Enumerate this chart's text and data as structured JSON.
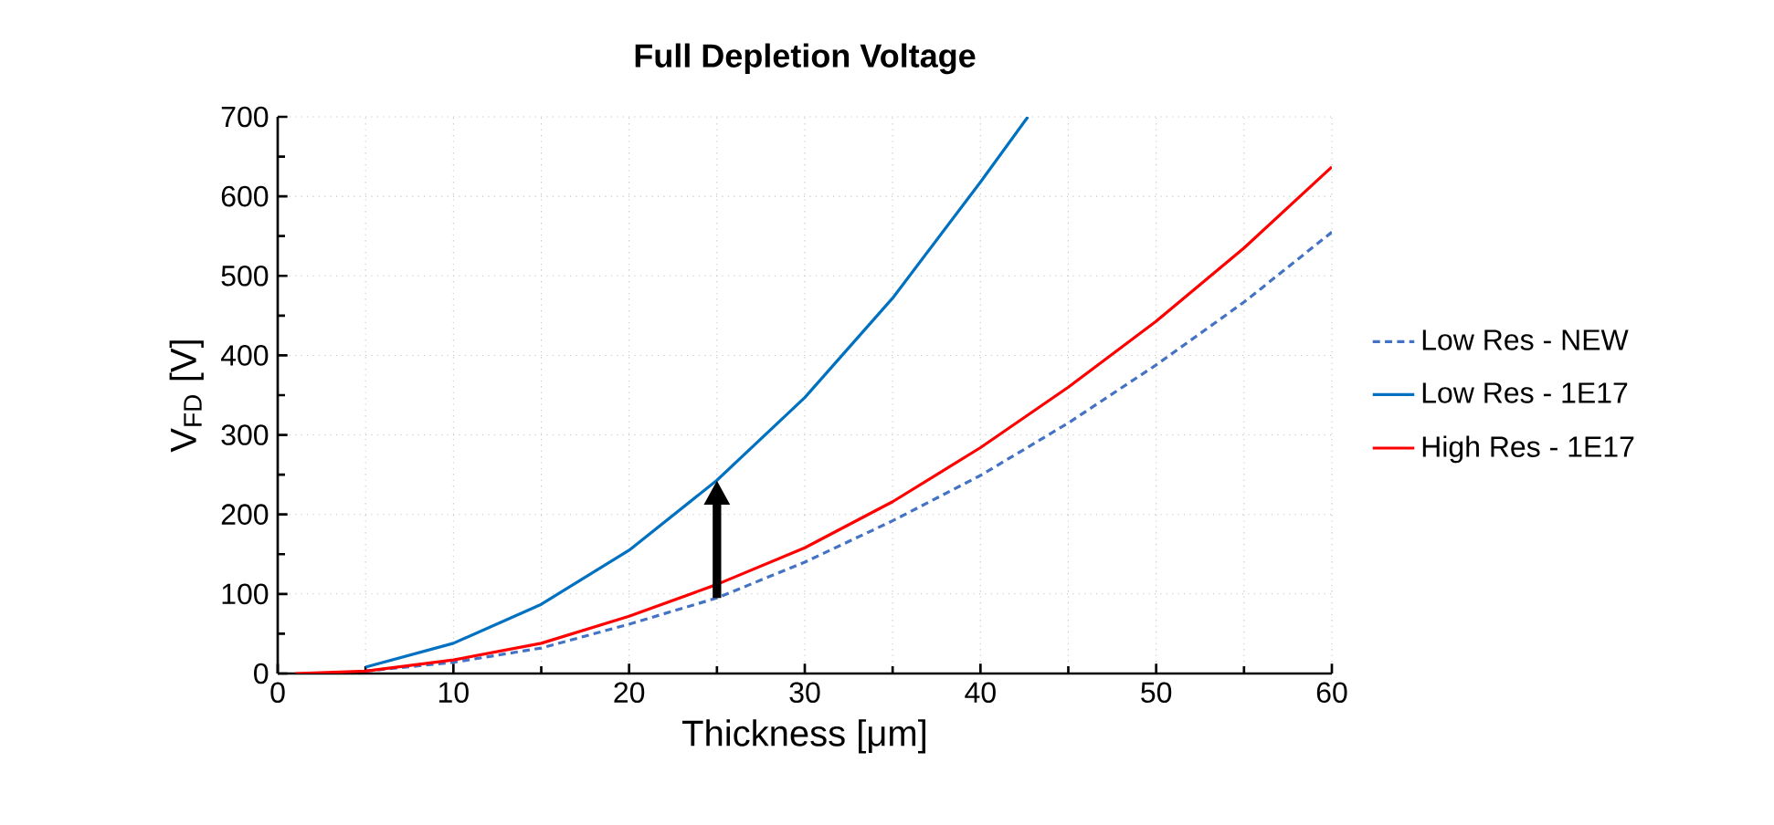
{
  "chart_data": {
    "type": "line",
    "title": "Full Depletion Voltage",
    "xlabel": "Thickness [μm]",
    "ylabel": "V$_{FD}$ [V]",
    "xlim": [
      0,
      60
    ],
    "xticks": [
      0,
      10,
      20,
      30,
      40,
      50,
      60
    ],
    "ylim": [
      0,
      700
    ],
    "yticks": [
      0,
      100,
      200,
      300,
      400,
      500,
      600,
      700
    ],
    "grid": true,
    "legend": "right",
    "marker": "none",
    "series": [
      {
        "name": "Low Res - NEW",
        "color": "#4472c4",
        "line_style": "dashed",
        "x": [
          5,
          10,
          15,
          20,
          25,
          30,
          35,
          40,
          45,
          50,
          55,
          60
        ],
        "values": [
          3,
          14,
          32,
          62,
          95,
          140,
          192,
          249,
          315,
          388,
          467,
          555
        ]
      },
      {
        "name": "Low Res - 1E17",
        "color": "#0070c0",
        "line_style": "solid",
        "x": [
          5,
          10,
          15,
          20,
          25,
          30,
          35,
          40,
          42.7
        ],
        "values": [
          8,
          38,
          87,
          155,
          243,
          347,
          472,
          618,
          700
        ]
      },
      {
        "name": "High Res - 1E17",
        "color": "#ff0000",
        "line_style": "solid",
        "x": [
          1,
          5,
          10,
          15,
          20,
          25,
          30,
          35,
          40,
          45,
          50,
          55,
          60
        ],
        "values": [
          0,
          3,
          17,
          38,
          72,
          112,
          158,
          216,
          284,
          360,
          443,
          535,
          637
        ]
      }
    ]
  }
}
